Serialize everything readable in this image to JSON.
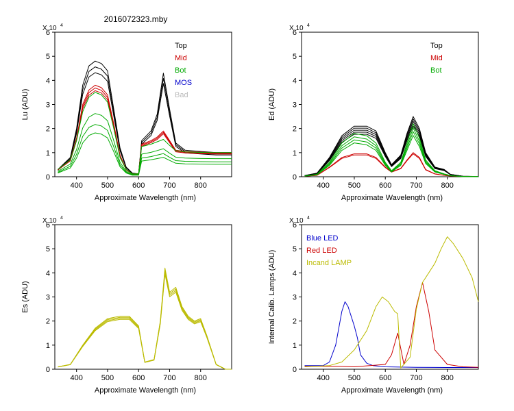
{
  "file_title": "2016072323.mby",
  "chart_data": [
    {
      "type": "line",
      "ylabel": "Lu (ADU)",
      "xlabel": "Approximate Wavelength (nm)",
      "multiplier": "X 10",
      "multiplier_exp": "4",
      "xlim": [
        330,
        900
      ],
      "ylim": [
        0,
        60000
      ],
      "xticks": [
        400,
        500,
        600,
        700,
        800
      ],
      "yticks": [
        0,
        10000,
        20000,
        30000,
        40000,
        50000,
        60000
      ],
      "ytick_labels": [
        "0",
        "1",
        "2",
        "3",
        "4",
        "5",
        "6"
      ],
      "legend": [
        {
          "label": "Top",
          "color": "#000000"
        },
        {
          "label": "Mid",
          "color": "#cc0000"
        },
        {
          "label": "Bot",
          "color": "#00aa00"
        },
        {
          "label": "MOS",
          "color": "#0000cc"
        },
        {
          "label": "Bad",
          "color": "#bbbbbb"
        }
      ],
      "series": [
        {
          "name": "Top",
          "color": "#000000",
          "count": 3,
          "scales": [
            1.0,
            0.95,
            0.9
          ],
          "x": [
            340,
            380,
            400,
            420,
            440,
            460,
            480,
            500,
            520,
            540,
            560,
            580,
            600,
            610,
            640,
            660,
            680,
            700,
            720,
            750,
            800,
            850,
            900
          ],
          "y": [
            3000,
            8000,
            20000,
            38000,
            46000,
            48000,
            47000,
            44000,
            28000,
            12000,
            4000,
            1500,
            1200,
            15000,
            19000,
            26000,
            43000,
            28000,
            14000,
            11000,
            10500,
            10000,
            10000
          ]
        },
        {
          "name": "Mid",
          "color": "#cc0000",
          "count": 3,
          "scales": [
            1.0,
            0.97,
            0.94
          ],
          "x": [
            340,
            380,
            400,
            420,
            440,
            460,
            480,
            500,
            520,
            540,
            560,
            580,
            600,
            610,
            640,
            660,
            680,
            700,
            720,
            750,
            800,
            850,
            900
          ],
          "y": [
            3000,
            7000,
            16000,
            30000,
            36000,
            38000,
            37000,
            34000,
            22000,
            9000,
            3000,
            1200,
            1200,
            13500,
            15000,
            16500,
            19000,
            15000,
            11000,
            10500,
            10200,
            10000,
            10000
          ]
        },
        {
          "name": "Bot",
          "color": "#00aa00",
          "count": 4,
          "scales": [
            1.0,
            0.75,
            0.62,
            0.52
          ],
          "x": [
            340,
            380,
            400,
            420,
            440,
            460,
            480,
            500,
            520,
            540,
            560,
            580,
            600,
            610,
            640,
            660,
            680,
            700,
            720,
            750,
            800,
            850,
            900
          ],
          "y": [
            3000,
            7000,
            15000,
            27000,
            33000,
            35000,
            34000,
            31000,
            20000,
            8000,
            3000,
            1200,
            1200,
            12500,
            13500,
            14500,
            15500,
            13000,
            10800,
            10300,
            10100,
            10000,
            10000
          ]
        }
      ]
    },
    {
      "type": "line",
      "ylabel": "Ed  (ADU)",
      "xlabel": "Approximate Wavelength (nm)",
      "multiplier": "X 10",
      "multiplier_exp": "4",
      "xlim": [
        330,
        900
      ],
      "ylim": [
        0,
        60000
      ],
      "xticks": [
        400,
        500,
        600,
        700,
        800
      ],
      "yticks": [
        0,
        10000,
        20000,
        30000,
        40000,
        50000,
        60000
      ],
      "ytick_labels": [
        "0",
        "1",
        "2",
        "3",
        "4",
        "5",
        "6"
      ],
      "legend": [
        {
          "label": "Top",
          "color": "#000000"
        },
        {
          "label": "Mid",
          "color": "#cc0000"
        },
        {
          "label": "Bot",
          "color": "#00aa00"
        }
      ],
      "series": [
        {
          "name": "Top",
          "color": "#000000",
          "count": 5,
          "scales": [
            1.0,
            0.96,
            0.92,
            0.88,
            0.84
          ],
          "x": [
            340,
            380,
            420,
            460,
            500,
            540,
            570,
            600,
            620,
            650,
            670,
            690,
            710,
            730,
            760,
            790,
            810,
            850,
            900
          ],
          "y": [
            500,
            1500,
            8000,
            17000,
            21000,
            21000,
            19000,
            10000,
            5000,
            9000,
            18000,
            25000,
            20000,
            10000,
            4000,
            3000,
            1000,
            200,
            100
          ]
        },
        {
          "name": "Mid",
          "color": "#cc0000",
          "count": 2,
          "scales": [
            1.0,
            0.95
          ],
          "x": [
            340,
            380,
            420,
            460,
            500,
            540,
            570,
            600,
            620,
            650,
            670,
            690,
            710,
            730,
            760,
            790,
            810,
            850,
            900
          ],
          "y": [
            200,
            600,
            4000,
            8000,
            9500,
            9500,
            8000,
            4000,
            2000,
            3500,
            7000,
            10000,
            8000,
            3000,
            1200,
            600,
            300,
            100,
            50
          ]
        },
        {
          "name": "Bot",
          "color": "#00aa00",
          "count": 4,
          "scales": [
            1.0,
            0.92,
            0.85,
            0.78
          ],
          "x": [
            340,
            380,
            420,
            460,
            500,
            540,
            570,
            600,
            620,
            650,
            670,
            690,
            710,
            730,
            760,
            790,
            810,
            850,
            900
          ],
          "y": [
            300,
            1000,
            6000,
            14000,
            18000,
            17000,
            14000,
            6000,
            2500,
            6000,
            14000,
            22000,
            16000,
            7000,
            2500,
            1200,
            500,
            100,
            50
          ]
        }
      ]
    },
    {
      "type": "line",
      "ylabel": "Es  (ADU)",
      "xlabel": "Approximate Wavelength (nm)",
      "multiplier": "X 10",
      "multiplier_exp": "4",
      "xlim": [
        330,
        900
      ],
      "ylim": [
        0,
        60000
      ],
      "xticks": [
        400,
        500,
        600,
        700,
        800
      ],
      "yticks": [
        0,
        10000,
        20000,
        30000,
        40000,
        50000,
        60000
      ],
      "ytick_labels": [
        "0",
        "1",
        "2",
        "3",
        "4",
        "5",
        "6"
      ],
      "legend": [],
      "series": [
        {
          "name": "Es",
          "color": "#bbbb00",
          "count": 4,
          "scales": [
            1.0,
            0.98,
            0.96,
            0.94
          ],
          "x": [
            340,
            380,
            420,
            460,
            500,
            540,
            570,
            600,
            620,
            650,
            670,
            685,
            700,
            720,
            740,
            760,
            780,
            800,
            820,
            850,
            880,
            900
          ],
          "y": [
            1000,
            2000,
            10000,
            17000,
            21000,
            22000,
            22000,
            18000,
            3000,
            4000,
            20000,
            42000,
            32000,
            34000,
            26000,
            22000,
            20000,
            21000,
            14000,
            2000,
            0,
            0
          ]
        }
      ]
    },
    {
      "type": "line",
      "ylabel": "Internal Calib. Lamps (ADU)",
      "xlabel": "Approximate Wavelength (nm)",
      "multiplier": "X 10",
      "multiplier_exp": "4",
      "xlim": [
        330,
        900
      ],
      "ylim": [
        0,
        60000
      ],
      "xticks": [
        400,
        500,
        600,
        700,
        800
      ],
      "yticks": [
        0,
        10000,
        20000,
        30000,
        40000,
        50000,
        60000
      ],
      "ytick_labels": [
        "0",
        "1",
        "2",
        "3",
        "4",
        "5",
        "6"
      ],
      "legend": [
        {
          "label": "Blue LED",
          "color": "#0000cc"
        },
        {
          "label": "Red LED",
          "color": "#cc0000"
        },
        {
          "label": "Incand LAMP",
          "color": "#bbbb00"
        }
      ],
      "series": [
        {
          "name": "Blue LED",
          "color": "#0000cc",
          "count": 1,
          "scales": [
            1.0
          ],
          "x": [
            340,
            400,
            420,
            440,
            460,
            470,
            480,
            500,
            510,
            520,
            540,
            560,
            600,
            700,
            800,
            900
          ],
          "y": [
            1500,
            1500,
            3000,
            10000,
            24000,
            28000,
            26000,
            18000,
            13000,
            6000,
            2500,
            1500,
            1000,
            800,
            700,
            700
          ]
        },
        {
          "name": "Red LED",
          "color": "#cc0000",
          "count": 1,
          "scales": [
            1.0
          ],
          "x": [
            340,
            450,
            500,
            600,
            620,
            640,
            660,
            680,
            700,
            720,
            740,
            760,
            800,
            850,
            900
          ],
          "y": [
            1200,
            1200,
            1000,
            2000,
            6000,
            15000,
            2000,
            10000,
            26000,
            36000,
            24000,
            8000,
            2000,
            1000,
            800
          ]
        },
        {
          "name": "Incand LAMP",
          "color": "#bbbb00",
          "count": 1,
          "scales": [
            1.0
          ],
          "x": [
            340,
            420,
            460,
            500,
            540,
            570,
            590,
            610,
            630,
            640,
            650,
            680,
            700,
            720,
            740,
            760,
            780,
            800,
            820,
            850,
            880,
            900
          ],
          "y": [
            1000,
            1500,
            3000,
            8000,
            16000,
            26000,
            30000,
            28000,
            24000,
            23000,
            500,
            5000,
            25000,
            36000,
            40000,
            44000,
            50000,
            55000,
            52000,
            46000,
            38000,
            28000
          ]
        }
      ]
    }
  ]
}
